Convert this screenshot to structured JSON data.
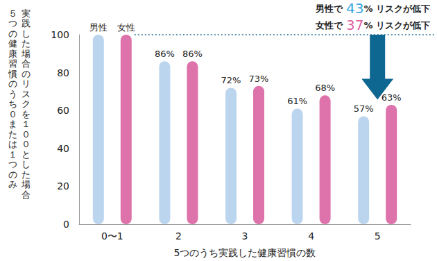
{
  "chart_data": {
    "type": "bar",
    "y_label": "５つの健康習慣のうち０または１つのみ\n実践した場合のリスクを１００とした場合",
    "x_label": "5つのうち実践した健康習慣の数",
    "categories": [
      "0〜1",
      "2",
      "3",
      "4",
      "5"
    ],
    "series": [
      {
        "name": "男性",
        "color": "#bcd5ef",
        "values": [
          100,
          86,
          72,
          61,
          57
        ],
        "value_labels": [
          null,
          "86%",
          "72%",
          "61%",
          "57%"
        ]
      },
      {
        "name": "女性",
        "color": "#de72aa",
        "values": [
          100,
          86,
          73,
          68,
          63
        ],
        "value_labels": [
          null,
          "86%",
          "73%",
          "68%",
          "63%"
        ]
      }
    ],
    "ylim": [
      0,
      100
    ],
    "yticks": [
      0,
      20,
      40,
      60,
      80,
      100
    ],
    "grid": false,
    "data_labels": true,
    "reference_line": 100,
    "annotations": [
      {
        "prefix": "男性で",
        "value": 43,
        "suffix": "% リスクが低下",
        "color": "#3aa7e0"
      },
      {
        "prefix": "女性で",
        "value": 37,
        "suffix": "% リスクが低下",
        "color": "#e0609f"
      }
    ]
  }
}
